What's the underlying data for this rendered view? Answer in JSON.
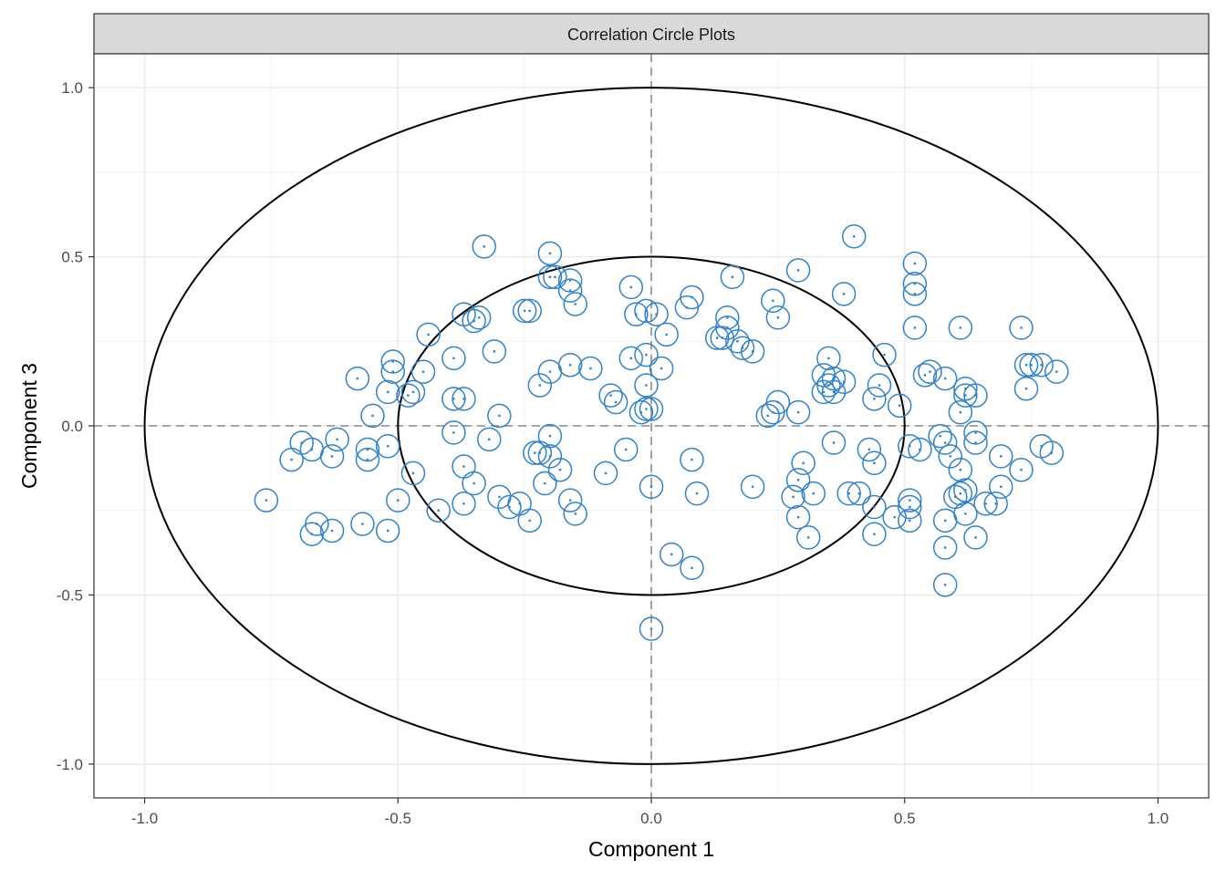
{
  "chart_data": {
    "type": "scatter",
    "title": "Correlation Circle Plots",
    "xlabel": "Component  1",
    "ylabel": "Component  3",
    "xlim": [
      -1.1,
      1.1
    ],
    "ylim": [
      -1.1,
      1.1
    ],
    "x_ticks": [
      -1.0,
      -0.5,
      0.0,
      0.5,
      1.0
    ],
    "x_tick_labels": [
      "-1.0",
      "-0.5",
      "0.0",
      "0.5",
      "1.0"
    ],
    "y_ticks": [
      -1.0,
      -0.5,
      0.0,
      0.5,
      1.0
    ],
    "y_tick_labels": [
      "-1.0",
      "-0.5",
      "0.0",
      "0.5",
      "1.0"
    ],
    "grid": true,
    "reference_circles": [
      1.0,
      0.5
    ],
    "reference_lines": {
      "x": 0,
      "y": 0,
      "style": "dashed"
    },
    "point_marker": "open-circle",
    "point_color": "#3182cc",
    "points": [
      {
        "x": -0.33,
        "y": 0.53
      },
      {
        "x": -0.2,
        "y": 0.51
      },
      {
        "x": -0.19,
        "y": 0.44
      },
      {
        "x": -0.2,
        "y": 0.44
      },
      {
        "x": -0.16,
        "y": 0.43
      },
      {
        "x": -0.16,
        "y": 0.4
      },
      {
        "x": -0.15,
        "y": 0.36
      },
      {
        "x": -0.25,
        "y": 0.34
      },
      {
        "x": -0.24,
        "y": 0.34
      },
      {
        "x": -0.37,
        "y": 0.33
      },
      {
        "x": -0.34,
        "y": 0.32
      },
      {
        "x": -0.35,
        "y": 0.31
      },
      {
        "x": -0.44,
        "y": 0.27
      },
      {
        "x": -0.31,
        "y": 0.22
      },
      {
        "x": -0.39,
        "y": 0.2
      },
      {
        "x": -0.51,
        "y": 0.19
      },
      {
        "x": -0.58,
        "y": 0.14
      },
      {
        "x": -0.51,
        "y": 0.16
      },
      {
        "x": -0.45,
        "y": 0.16
      },
      {
        "x": -0.52,
        "y": 0.1
      },
      {
        "x": -0.48,
        "y": 0.09
      },
      {
        "x": -0.47,
        "y": 0.1
      },
      {
        "x": -0.39,
        "y": 0.08
      },
      {
        "x": -0.37,
        "y": 0.08
      },
      {
        "x": -0.55,
        "y": 0.03
      },
      {
        "x": -0.3,
        "y": 0.03
      },
      {
        "x": -0.2,
        "y": 0.16
      },
      {
        "x": -0.16,
        "y": 0.18
      },
      {
        "x": -0.22,
        "y": 0.12
      },
      {
        "x": -0.39,
        "y": -0.02
      },
      {
        "x": -0.32,
        "y": -0.04
      },
      {
        "x": -0.2,
        "y": -0.03
      },
      {
        "x": -0.22,
        "y": -0.08
      },
      {
        "x": -0.2,
        "y": -0.09
      },
      {
        "x": -0.12,
        "y": 0.17
      },
      {
        "x": -0.08,
        "y": 0.09
      },
      {
        "x": -0.07,
        "y": 0.07
      },
      {
        "x": -0.04,
        "y": 0.41
      },
      {
        "x": -0.03,
        "y": 0.33
      },
      {
        "x": -0.01,
        "y": 0.34
      },
      {
        "x": 0.01,
        "y": 0.33
      },
      {
        "x": 0.03,
        "y": 0.27
      },
      {
        "x": -0.04,
        "y": 0.2
      },
      {
        "x": -0.01,
        "y": 0.21
      },
      {
        "x": 0.02,
        "y": 0.17
      },
      {
        "x": -0.01,
        "y": 0.12
      },
      {
        "x": -0.01,
        "y": 0.05
      },
      {
        "x": 0.0,
        "y": 0.05
      },
      {
        "x": -0.02,
        "y": 0.04
      },
      {
        "x": 0.08,
        "y": 0.38
      },
      {
        "x": 0.07,
        "y": 0.35
      },
      {
        "x": 0.16,
        "y": 0.44
      },
      {
        "x": 0.15,
        "y": 0.32
      },
      {
        "x": 0.15,
        "y": 0.29
      },
      {
        "x": 0.14,
        "y": 0.26
      },
      {
        "x": 0.13,
        "y": 0.26
      },
      {
        "x": 0.17,
        "y": 0.25
      },
      {
        "x": 0.18,
        "y": 0.23
      },
      {
        "x": 0.2,
        "y": 0.22
      },
      {
        "x": 0.24,
        "y": 0.37
      },
      {
        "x": 0.25,
        "y": 0.32
      },
      {
        "x": 0.29,
        "y": 0.46
      },
      {
        "x": 0.38,
        "y": 0.39
      },
      {
        "x": 0.4,
        "y": 0.56
      },
      {
        "x": 0.52,
        "y": 0.48
      },
      {
        "x": 0.52,
        "y": 0.42
      },
      {
        "x": 0.52,
        "y": 0.39
      },
      {
        "x": 0.52,
        "y": 0.29
      },
      {
        "x": 0.61,
        "y": 0.29
      },
      {
        "x": 0.73,
        "y": 0.29
      },
      {
        "x": 0.46,
        "y": 0.21
      },
      {
        "x": 0.35,
        "y": 0.2
      },
      {
        "x": 0.34,
        "y": 0.15
      },
      {
        "x": 0.36,
        "y": 0.14
      },
      {
        "x": 0.38,
        "y": 0.13
      },
      {
        "x": 0.35,
        "y": 0.12
      },
      {
        "x": 0.34,
        "y": 0.1
      },
      {
        "x": 0.36,
        "y": 0.1
      },
      {
        "x": 0.45,
        "y": 0.12
      },
      {
        "x": 0.44,
        "y": 0.08
      },
      {
        "x": 0.49,
        "y": 0.06
      },
      {
        "x": 0.54,
        "y": 0.15
      },
      {
        "x": 0.55,
        "y": 0.16
      },
      {
        "x": 0.58,
        "y": 0.14
      },
      {
        "x": 0.62,
        "y": 0.11
      },
      {
        "x": 0.62,
        "y": 0.09
      },
      {
        "x": 0.64,
        "y": 0.09
      },
      {
        "x": 0.61,
        "y": 0.04
      },
      {
        "x": 0.74,
        "y": 0.18
      },
      {
        "x": 0.75,
        "y": 0.18
      },
      {
        "x": 0.77,
        "y": 0.18
      },
      {
        "x": 0.8,
        "y": 0.16
      },
      {
        "x": 0.74,
        "y": 0.11
      },
      {
        "x": 0.25,
        "y": 0.07
      },
      {
        "x": 0.24,
        "y": 0.04
      },
      {
        "x": 0.23,
        "y": 0.03
      },
      {
        "x": 0.29,
        "y": 0.04
      },
      {
        "x": -0.71,
        "y": -0.1
      },
      {
        "x": -0.69,
        "y": -0.05
      },
      {
        "x": -0.67,
        "y": -0.07
      },
      {
        "x": -0.62,
        "y": -0.04
      },
      {
        "x": -0.63,
        "y": -0.09
      },
      {
        "x": -0.56,
        "y": -0.07
      },
      {
        "x": -0.56,
        "y": -0.1
      },
      {
        "x": -0.52,
        "y": -0.06
      },
      {
        "x": -0.76,
        "y": -0.22
      },
      {
        "x": -0.66,
        "y": -0.29
      },
      {
        "x": -0.67,
        "y": -0.32
      },
      {
        "x": -0.63,
        "y": -0.31
      },
      {
        "x": -0.57,
        "y": -0.29
      },
      {
        "x": -0.52,
        "y": -0.31
      },
      {
        "x": -0.5,
        "y": -0.22
      },
      {
        "x": -0.47,
        "y": -0.14
      },
      {
        "x": -0.42,
        "y": -0.25
      },
      {
        "x": -0.37,
        "y": -0.12
      },
      {
        "x": -0.37,
        "y": -0.23
      },
      {
        "x": -0.35,
        "y": -0.17
      },
      {
        "x": -0.3,
        "y": -0.21
      },
      {
        "x": -0.28,
        "y": -0.24
      },
      {
        "x": -0.26,
        "y": -0.23
      },
      {
        "x": -0.24,
        "y": -0.28
      },
      {
        "x": -0.23,
        "y": -0.08
      },
      {
        "x": -0.21,
        "y": -0.17
      },
      {
        "x": -0.18,
        "y": -0.13
      },
      {
        "x": -0.16,
        "y": -0.22
      },
      {
        "x": -0.15,
        "y": -0.26
      },
      {
        "x": -0.09,
        "y": -0.14
      },
      {
        "x": -0.05,
        "y": -0.07
      },
      {
        "x": 0.0,
        "y": -0.18
      },
      {
        "x": 0.04,
        "y": -0.38
      },
      {
        "x": 0.08,
        "y": -0.42
      },
      {
        "x": 0.08,
        "y": -0.1
      },
      {
        "x": 0.09,
        "y": -0.2
      },
      {
        "x": 0.2,
        "y": -0.18
      },
      {
        "x": 0.3,
        "y": -0.11
      },
      {
        "x": 0.29,
        "y": -0.16
      },
      {
        "x": 0.28,
        "y": -0.21
      },
      {
        "x": 0.29,
        "y": -0.27
      },
      {
        "x": 0.31,
        "y": -0.33
      },
      {
        "x": 0.32,
        "y": -0.2
      },
      {
        "x": 0.36,
        "y": -0.05
      },
      {
        "x": 0.39,
        "y": -0.2
      },
      {
        "x": 0.41,
        "y": -0.2
      },
      {
        "x": 0.43,
        "y": -0.07
      },
      {
        "x": 0.44,
        "y": -0.11
      },
      {
        "x": 0.44,
        "y": -0.24
      },
      {
        "x": 0.44,
        "y": -0.32
      },
      {
        "x": 0.48,
        "y": -0.27
      },
      {
        "x": 0.51,
        "y": -0.28
      },
      {
        "x": 0.51,
        "y": -0.06
      },
      {
        "x": 0.53,
        "y": -0.07
      },
      {
        "x": 0.51,
        "y": -0.22
      },
      {
        "x": 0.51,
        "y": -0.24
      },
      {
        "x": 0.57,
        "y": -0.03
      },
      {
        "x": 0.58,
        "y": -0.05
      },
      {
        "x": 0.59,
        "y": -0.09
      },
      {
        "x": 0.61,
        "y": -0.13
      },
      {
        "x": 0.61,
        "y": -0.2
      },
      {
        "x": 0.62,
        "y": -0.19
      },
      {
        "x": 0.6,
        "y": -0.21
      },
      {
        "x": 0.64,
        "y": -0.05
      },
      {
        "x": 0.64,
        "y": -0.02
      },
      {
        "x": 0.66,
        "y": -0.23
      },
      {
        "x": 0.68,
        "y": -0.23
      },
      {
        "x": 0.69,
        "y": -0.09
      },
      {
        "x": 0.69,
        "y": -0.18
      },
      {
        "x": 0.73,
        "y": -0.13
      },
      {
        "x": 0.77,
        "y": -0.06
      },
      {
        "x": 0.79,
        "y": -0.08
      },
      {
        "x": 0.58,
        "y": -0.28
      },
      {
        "x": 0.58,
        "y": -0.36
      },
      {
        "x": 0.62,
        "y": -0.26
      },
      {
        "x": 0.64,
        "y": -0.33
      },
      {
        "x": 0.58,
        "y": -0.47
      },
      {
        "x": 0.0,
        "y": -0.6
      }
    ]
  }
}
